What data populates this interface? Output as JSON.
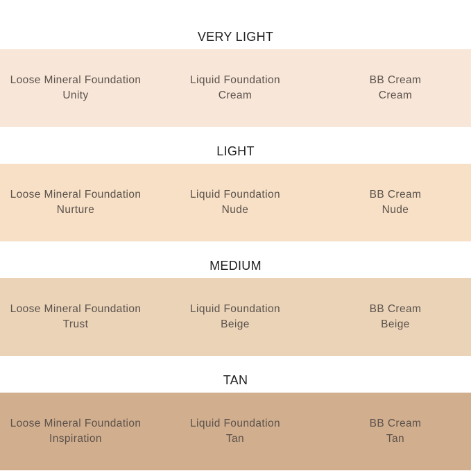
{
  "sections": [
    {
      "title": "VERY LIGHT",
      "products": [
        {
          "name": "Loose Mineral Foundation",
          "shade": "Unity"
        },
        {
          "name": "Liquid Foundation",
          "shade": "Cream"
        },
        {
          "name": "BB Cream",
          "shade": "Cream"
        }
      ]
    },
    {
      "title": "LIGHT",
      "products": [
        {
          "name": "Loose Mineral Foundation",
          "shade": "Nurture"
        },
        {
          "name": "Liquid Foundation",
          "shade": "Nude"
        },
        {
          "name": "BB Cream",
          "shade": "Nude"
        }
      ]
    },
    {
      "title": "MEDIUM",
      "products": [
        {
          "name": "Loose Mineral Foundation",
          "shade": "Trust"
        },
        {
          "name": "Liquid Foundation",
          "shade": "Beige"
        },
        {
          "name": "BB Cream",
          "shade": "Beige"
        }
      ]
    },
    {
      "title": "TAN",
      "products": [
        {
          "name": "Loose Mineral Foundation",
          "shade": "Inspiration"
        },
        {
          "name": "Liquid Foundation",
          "shade": "Tan"
        },
        {
          "name": "BB Cream",
          "shade": "Tan"
        }
      ]
    }
  ]
}
